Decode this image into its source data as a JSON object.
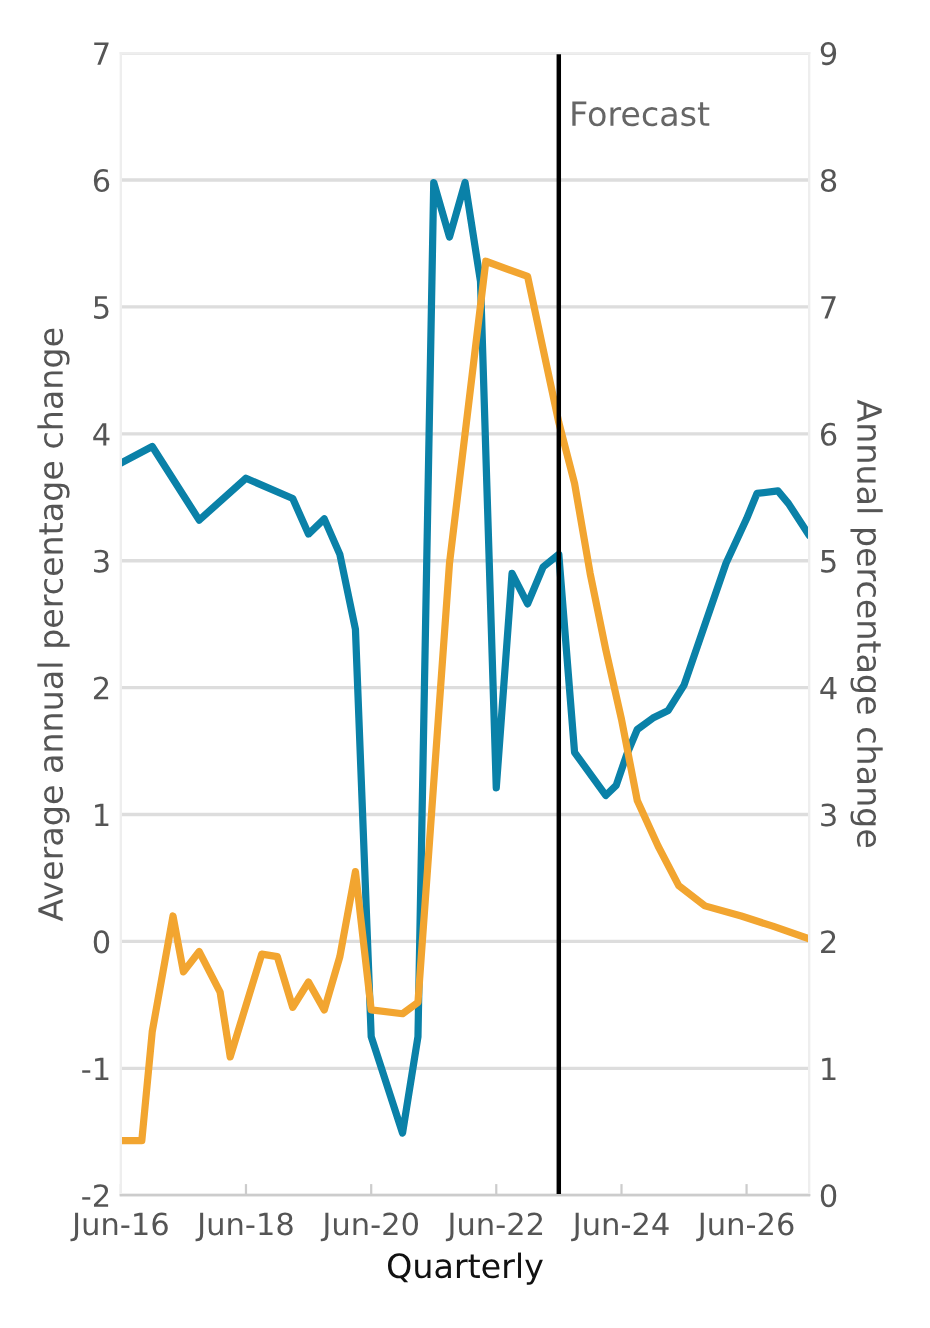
{
  "chart_data": {
    "type": "line",
    "xlabel": "Quarterly",
    "ylabel": "Average annual percentage change",
    "y2label": "Annual percentage change",
    "series": [
      {
        "color": "#0a81a8",
        "x": [
          "2016-06",
          "2016-12",
          "2017-09",
          "2018-06",
          "2019-03",
          "2019-06",
          "2019-09",
          "2019-12",
          "2020-03",
          "2020-06",
          "2020-12",
          "2021-03",
          "2021-06",
          "2021-09",
          "2021-12",
          "2022-03",
          "2022-06",
          "2022-09",
          "2022-12",
          "2023-03",
          "2023-06",
          "2023-09",
          "2024-03",
          "2024-05",
          "2024-07",
          "2024-09",
          "2024-12",
          "2025-03",
          "2025-06",
          "2025-09",
          "2026-02",
          "2026-06",
          "2026-08",
          "2026-12",
          "2027-02",
          "2027-06"
        ],
        "values": [
          3.77,
          3.9,
          3.32,
          3.65,
          3.49,
          3.21,
          3.33,
          3.05,
          2.46,
          -0.75,
          -1.51,
          -0.75,
          5.98,
          5.55,
          5.98,
          5.2,
          1.21,
          2.9,
          2.66,
          2.95,
          3.05,
          1.49,
          1.15,
          1.23,
          1.47,
          1.67,
          1.76,
          1.82,
          2.02,
          2.38,
          2.98,
          3.33,
          3.53,
          3.55,
          3.45,
          3.2
        ]
      },
      {
        "color": "#f2a530",
        "x": [
          "2016-06",
          "2016-10",
          "2016-12",
          "2017-04",
          "2017-06",
          "2017-09",
          "2018-01",
          "2018-03",
          "2018-09",
          "2018-12",
          "2019-03",
          "2019-06",
          "2019-09",
          "2019-12",
          "2020-03",
          "2020-06",
          "2020-12",
          "2021-03",
          "2021-09",
          "2022-04",
          "2022-12",
          "2023-06",
          "2023-09",
          "2023-12",
          "2024-03",
          "2024-06",
          "2024-09",
          "2025-01",
          "2025-05",
          "2025-10",
          "2026-05",
          "2026-11",
          "2027-06"
        ],
        "values": [
          -1.57,
          -1.57,
          -0.71,
          0.2,
          -0.24,
          -0.08,
          -0.4,
          -0.91,
          -0.1,
          -0.12,
          -0.52,
          -0.32,
          -0.54,
          -0.12,
          0.55,
          -0.54,
          -0.57,
          -0.48,
          2.98,
          5.36,
          5.24,
          4.09,
          3.61,
          2.9,
          2.3,
          1.75,
          1.11,
          0.75,
          0.44,
          0.28,
          0.2,
          0.12,
          0.02
        ]
      }
    ],
    "xlim": [
      "2016-06",
      "2027-06"
    ],
    "xticks": [
      {
        "value": "2016-06",
        "label": "Jun-16"
      },
      {
        "value": "2018-06",
        "label": "Jun-18"
      },
      {
        "value": "2020-06",
        "label": "Jun-20"
      },
      {
        "value": "2022-06",
        "label": "Jun-22"
      },
      {
        "value": "2024-06",
        "label": "Jun-24"
      },
      {
        "value": "2026-06",
        "label": "Jun-26"
      }
    ],
    "ylim": [
      -2,
      7
    ],
    "yticks": [
      -2,
      -1,
      0,
      1,
      2,
      3,
      4,
      5,
      6,
      7
    ],
    "y2lim": [
      0,
      9
    ],
    "y2ticks": [
      0,
      1,
      2,
      3,
      4,
      5,
      6,
      7,
      8,
      9
    ],
    "ref_lines": [
      {
        "axis": "x",
        "value": "2023-06",
        "label": "Forecast",
        "color": "#000000"
      }
    ],
    "grid": "y",
    "legend": false,
    "marker": "none",
    "line_style": "solid"
  }
}
